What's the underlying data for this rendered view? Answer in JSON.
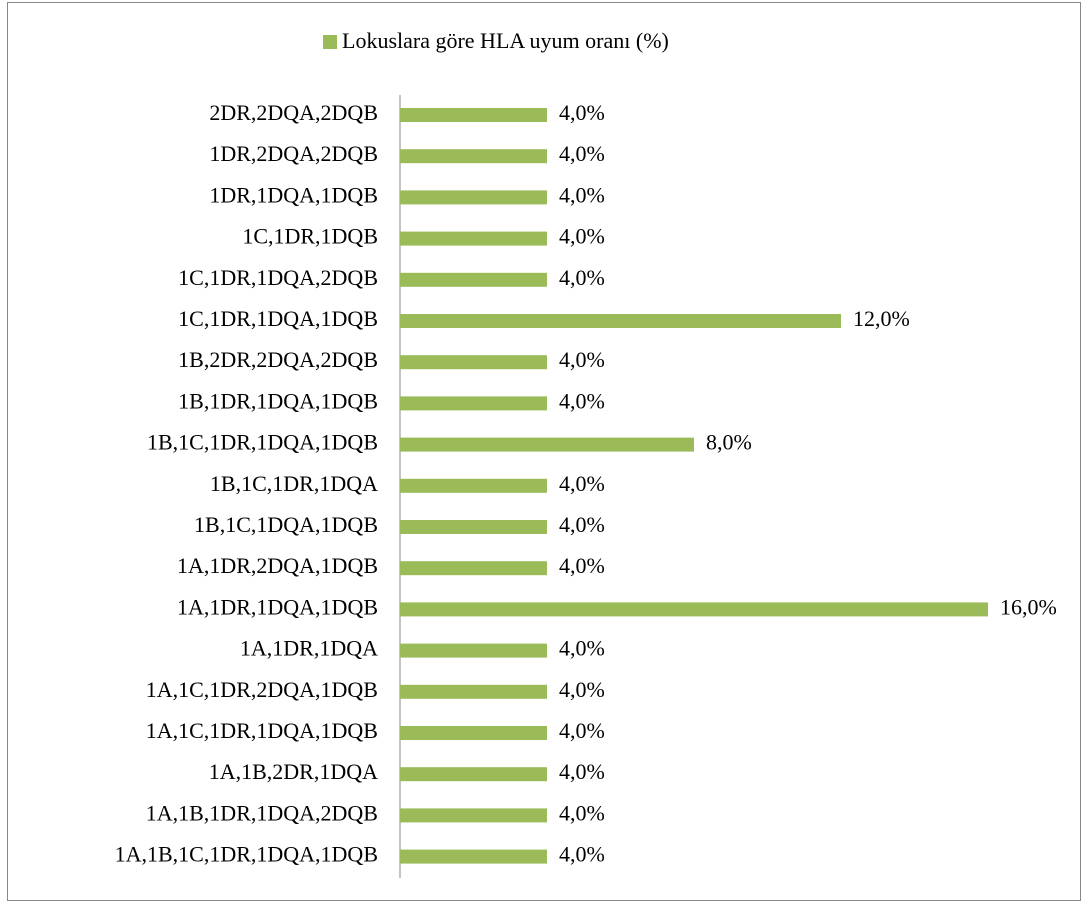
{
  "chart_data": {
    "type": "hbar",
    "categories": [
      "2DR,2DQA,2DQB",
      "1DR,2DQA,2DQB",
      "1DR,1DQA,1DQB",
      "1C,1DR,1DQB",
      "1C,1DR,1DQA,2DQB",
      "1C,1DR,1DQA,1DQB",
      "1B,2DR,2DQA,2DQB",
      "1B,1DR,1DQA,1DQB",
      "1B,1C,1DR,1DQA,1DQB",
      "1B,1C,1DR,1DQA",
      "1B,1C,1DQA,1DQB",
      "1A,1DR,2DQA,1DQB",
      "1A,1DR,1DQA,1DQB",
      "1A,1DR,1DQA",
      "1A,1C,1DR,2DQA,1DQB",
      "1A,1C,1DR,1DQA,1DQB",
      "1A,1B,2DR,1DQA",
      "1A,1B,1DR,1DQA,2DQB",
      "1A,1B,1C,1DR,1DQA,1DQB"
    ],
    "series": [
      {
        "name": "Lokuslara göre HLA uyum oranı (%)",
        "color": "#9bbb59",
        "values": [
          4,
          4,
          4,
          4,
          4,
          12,
          4,
          4,
          8,
          4,
          4,
          4,
          16,
          4,
          4,
          4,
          4,
          4,
          4
        ],
        "value_labels": [
          "4,0%",
          "4,0%",
          "4,0%",
          "4,0%",
          "4,0%",
          "12,0%",
          "4,0%",
          "4,0%",
          "8,0%",
          "4,0%",
          "4,0%",
          "4,0%",
          "16,0%",
          "4,0%",
          "4,0%",
          "4,0%",
          "4,0%",
          "4,0%",
          "4,0%"
        ]
      }
    ],
    "xlim": [
      0,
      18
    ]
  }
}
